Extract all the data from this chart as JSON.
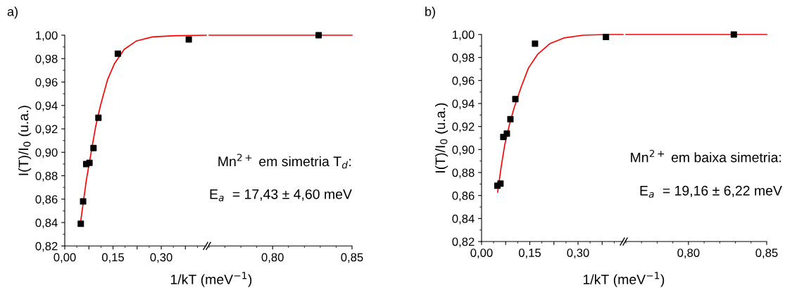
{
  "chart_data": [
    {
      "type": "scatter",
      "title": "a)",
      "xlabel": "1/kT (meV$^{−1}$)",
      "ylabel": "I(T)/I$_{0}$ (u.a.)",
      "xlim": [
        0,
        0.44
      ],
      "ylim": [
        0.82,
        1.0
      ],
      "xticks": [
        {
          "value": 0,
          "label": "0,00"
        },
        {
          "value": 0.075,
          "label": null
        },
        {
          "value": 0.15,
          "label": "0,15"
        },
        {
          "value": 0.225,
          "label": null
        },
        {
          "value": 0.3,
          "label": "0,30"
        },
        {
          "value": 0.375,
          "label": null
        }
      ],
      "yticks": [
        {
          "value": 0.82,
          "label": "0,82"
        },
        {
          "value": 0.84,
          "label": "0,84"
        },
        {
          "value": 0.86,
          "label": "0,86"
        },
        {
          "value": 0.88,
          "label": "0,88"
        },
        {
          "value": 0.9,
          "label": "0,90"
        },
        {
          "value": 0.92,
          "label": "0,92"
        },
        {
          "value": 0.94,
          "label": "0,94"
        },
        {
          "value": 0.96,
          "label": "0,96"
        },
        {
          "value": 0.98,
          "label": "0,98"
        },
        {
          "value": 1.0,
          "label": "1,00"
        }
      ],
      "series": [
        {
          "type": "line",
          "color": "#ff0000",
          "x": [
            0.049,
            0.067,
            0.082,
            0.096,
            0.111,
            0.133,
            0.155,
            0.185,
            0.222,
            0.273,
            0.346,
            0.44
          ],
          "values": [
            0.84,
            0.876,
            0.9,
            0.922,
            0.94,
            0.962,
            0.976,
            0.988,
            0.995,
            0.9986,
            0.9996,
            1.0
          ]
        },
        {
          "color": "#000000",
          "marker": "square",
          "x": [
            0.0498,
            0.057,
            0.0666,
            0.0768,
            0.0893,
            0.1046,
            0.165,
            0.3856
          ],
          "values": [
            0.839,
            0.858,
            0.89,
            0.891,
            0.9036,
            0.9295,
            0.9842,
            0.9964
          ]
        }
      ]
    },
    {
      "type": "scatter",
      "xlim": [
        0.76,
        0.85
      ],
      "ylim": [
        0.82,
        1.0
      ],
      "tick_labels": "x",
      "xticks": [
        {
          "value": 0.8,
          "label": "0,80"
        },
        {
          "value": 0.85,
          "label": "0,85"
        }
      ],
      "annotations": [
        "Mn$^{2+}$ em simetria T$_{d}$:",
        "E$_{a}$  = 17,43 ± 4,60 meV"
      ],
      "series": [
        {
          "type": "line",
          "color": "#ff0000",
          "x": [
            0.76,
            0.85
          ],
          "values": [
            1.0,
            1.0
          ]
        },
        {
          "color": "#000000",
          "marker": "square",
          "x": [
            0.829
          ],
          "values": [
            1.0
          ]
        }
      ]
    },
    {
      "type": "scatter",
      "title": "b)",
      "xlabel": "1/kT (meV$^{−1}$)",
      "ylabel": "I(T)/I$_{0}$ (u.a.)",
      "xlim": [
        0,
        0.44
      ],
      "ylim": [
        0.82,
        1.0
      ],
      "xticks": [
        {
          "value": 0,
          "label": "0,00"
        },
        {
          "value": 0.075,
          "label": null
        },
        {
          "value": 0.15,
          "label": "0,15"
        },
        {
          "value": 0.225,
          "label": null
        },
        {
          "value": 0.3,
          "label": "0,30"
        },
        {
          "value": 0.375,
          "label": null
        }
      ],
      "yticks": [
        {
          "value": 0.82,
          "label": "0,82"
        },
        {
          "value": 0.84,
          "label": "0,84"
        },
        {
          "value": 0.86,
          "label": "0,86"
        },
        {
          "value": 0.88,
          "label": "0,88"
        },
        {
          "value": 0.9,
          "label": "0,90"
        },
        {
          "value": 0.92,
          "label": "0,92"
        },
        {
          "value": 0.94,
          "label": "0,94"
        },
        {
          "value": 0.96,
          "label": "0,96"
        },
        {
          "value": 0.98,
          "label": "0,98"
        },
        {
          "value": 1.0,
          "label": "1,00"
        }
      ],
      "series": [
        {
          "type": "line",
          "color": "#ff0000",
          "x": [
            0.05,
            0.061,
            0.072,
            0.087,
            0.101,
            0.124,
            0.146,
            0.175,
            0.212,
            0.256,
            0.315,
            0.388,
            0.44
          ],
          "values": [
            0.863,
            0.885,
            0.904,
            0.922,
            0.936,
            0.955,
            0.971,
            0.983,
            0.992,
            0.997,
            0.9994,
            1.0,
            1.0
          ]
        },
        {
          "color": "#000000",
          "marker": "square",
          "x": [
            0.0493,
            0.0588,
            0.0676,
            0.0787,
            0.0897,
            0.1051,
            0.1662,
            0.3868
          ],
          "values": [
            0.8685,
            0.8703,
            0.9109,
            0.9138,
            0.9264,
            0.9439,
            0.992,
            0.9978
          ]
        }
      ]
    },
    {
      "type": "scatter",
      "xlim": [
        0.76,
        0.85
      ],
      "ylim": [
        0.82,
        1.0
      ],
      "tick_labels": "x",
      "xticks": [
        {
          "value": 0.8,
          "label": "0,80"
        },
        {
          "value": 0.85,
          "label": "0,85"
        }
      ],
      "annotations": [
        "Mn$^{2+}$ em baixa simetria:",
        "E$_{a}$  = 19,16 ± 6,22 meV"
      ],
      "series": [
        {
          "type": "line",
          "color": "#ff0000",
          "x": [
            0.76,
            0.85
          ],
          "values": [
            1.0,
            1.0
          ]
        },
        {
          "color": "#000000",
          "marker": "square",
          "x": [
            0.829
          ],
          "values": [
            1.0
          ]
        }
      ]
    }
  ]
}
